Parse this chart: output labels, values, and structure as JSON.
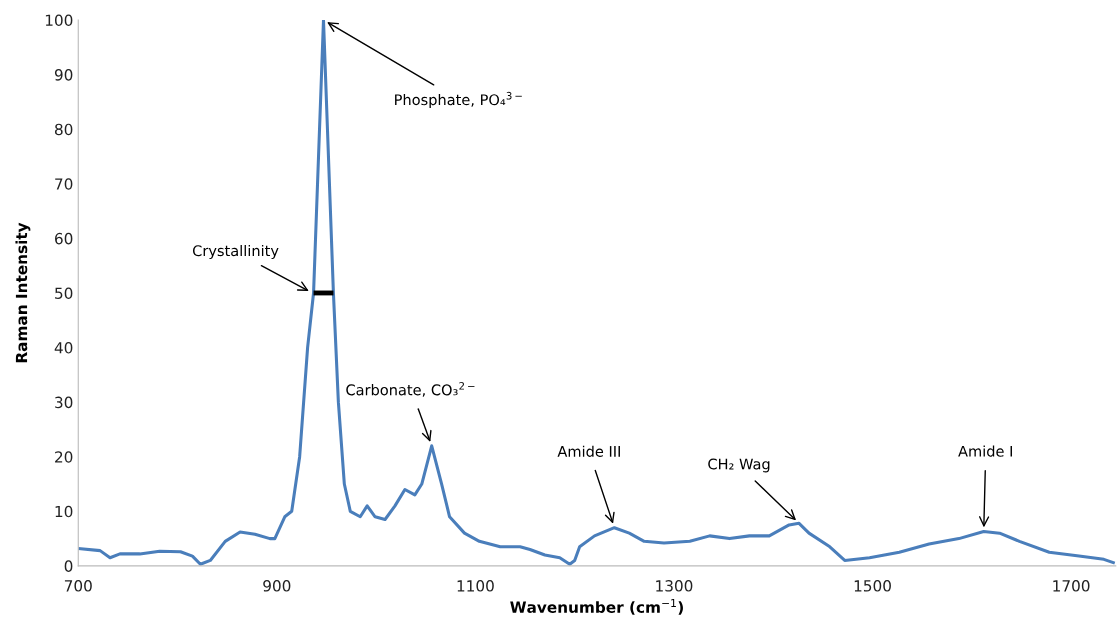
{
  "chart_data": {
    "type": "line",
    "xlabel": "Wavenumber (cm$^{−1}$)",
    "ylabel": "Raman Intensity",
    "xlim": [
      700,
      1745
    ],
    "xticks": [
      700,
      900,
      1100,
      1300,
      1500,
      1700
    ],
    "ylim": [
      0,
      100
    ],
    "yticks": [
      0,
      10,
      20,
      30,
      40,
      50,
      60,
      70,
      80,
      90,
      100
    ],
    "grid": false,
    "legend": false,
    "marker": "none",
    "line_style": "solid",
    "series": [
      {
        "color": "#4a7ebb",
        "x": [
          700,
          722,
          732,
          742,
          762,
          782,
          803,
          815,
          823,
          833,
          848,
          863,
          878,
          893,
          898,
          908,
          915,
          923,
          931,
          937,
          943,
          947,
          951,
          957,
          962,
          968,
          974,
          984,
          991,
          999,
          1009,
          1019,
          1029,
          1039,
          1046,
          1056,
          1066,
          1074,
          1089,
          1104,
          1125,
          1145,
          1155,
          1170,
          1185,
          1195,
          1200,
          1205,
          1220,
          1240,
          1255,
          1270,
          1290,
          1316,
          1336,
          1356,
          1376,
          1396,
          1416,
          1426,
          1436,
          1457,
          1472,
          1497,
          1527,
          1557,
          1587,
          1612,
          1628,
          1648,
          1678,
          1708,
          1733,
          1744
        ],
        "values": [
          3.2,
          2.8,
          1.5,
          2.2,
          2.2,
          2.7,
          2.6,
          1.8,
          0.3,
          1.0,
          4.5,
          6.2,
          5.8,
          5.0,
          5.0,
          9,
          10,
          20,
          40,
          50,
          80,
          100,
          80,
          50,
          30,
          15,
          10,
          9,
          11,
          9,
          8.5,
          11,
          14,
          13,
          15,
          22,
          15,
          9,
          6,
          4.5,
          3.5,
          3.5,
          3,
          2,
          1.5,
          0.3,
          1,
          3.5,
          5.5,
          7,
          6,
          4.5,
          4.2,
          4.5,
          5.5,
          5,
          5.5,
          5.5,
          7.5,
          7.8,
          6,
          3.5,
          1,
          1.5,
          2.5,
          4,
          5,
          6.3,
          6,
          4.5,
          2.5,
          1.8,
          1.2,
          0.5
        ]
      },
      {
        "color": "#000000",
        "x": [
          937,
          957
        ],
        "values": [
          50,
          50
        ]
      }
    ],
    "annotations": [
      {
        "text": "Phosphate, PO₄$^{3−}$",
        "x": 947,
        "y": 100
      },
      {
        "text": "Crystallinity",
        "x": 936,
        "y": 50
      },
      {
        "text": "Carbonate, CO₃$^{2−}$",
        "x": 1056,
        "y": 22
      },
      {
        "text": "Amide III",
        "x": 1240,
        "y": 7
      },
      {
        "text": "CH₂ Wag",
        "x": 1426,
        "y": 7.8
      },
      {
        "text": "Amide I",
        "x": 1612,
        "y": 6.3
      }
    ]
  }
}
